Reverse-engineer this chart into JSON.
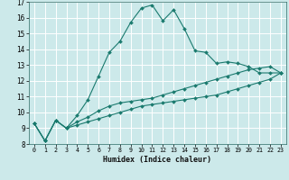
{
  "xlabel": "Humidex (Indice chaleur)",
  "background_color": "#cce9ea",
  "grid_color": "#ffffff",
  "line_color": "#1a7a6e",
  "xlim": [
    -0.5,
    23.5
  ],
  "ylim": [
    8,
    17
  ],
  "xticks": [
    0,
    1,
    2,
    3,
    4,
    5,
    6,
    7,
    8,
    9,
    10,
    11,
    12,
    13,
    14,
    15,
    16,
    17,
    18,
    19,
    20,
    21,
    22,
    23
  ],
  "yticks": [
    8,
    9,
    10,
    11,
    12,
    13,
    14,
    15,
    16,
    17
  ],
  "series1_x": [
    0,
    1,
    2,
    3,
    4,
    5,
    6,
    7,
    8,
    9,
    10,
    11,
    12,
    13,
    14,
    15,
    16,
    17,
    18,
    19,
    20,
    21,
    22,
    23
  ],
  "series1_y": [
    9.3,
    8.2,
    9.5,
    9.0,
    9.8,
    10.8,
    12.3,
    13.8,
    14.5,
    15.7,
    16.6,
    16.8,
    15.8,
    16.5,
    15.3,
    13.9,
    13.8,
    13.1,
    13.2,
    13.1,
    12.9,
    12.5,
    12.5,
    12.5
  ],
  "series2_x": [
    0,
    1,
    2,
    3,
    4,
    5,
    6,
    7,
    8,
    9,
    10,
    11,
    12,
    13,
    14,
    15,
    16,
    17,
    18,
    19,
    20,
    21,
    22,
    23
  ],
  "series2_y": [
    9.3,
    8.2,
    9.5,
    9.0,
    9.4,
    9.7,
    10.1,
    10.4,
    10.6,
    10.7,
    10.8,
    10.9,
    11.1,
    11.3,
    11.5,
    11.7,
    11.9,
    12.1,
    12.3,
    12.5,
    12.7,
    12.8,
    12.9,
    12.5
  ],
  "series3_x": [
    0,
    1,
    2,
    3,
    4,
    5,
    6,
    7,
    8,
    9,
    10,
    11,
    12,
    13,
    14,
    15,
    16,
    17,
    18,
    19,
    20,
    21,
    22,
    23
  ],
  "series3_y": [
    9.3,
    8.2,
    9.5,
    9.0,
    9.2,
    9.4,
    9.6,
    9.8,
    10.0,
    10.2,
    10.4,
    10.5,
    10.6,
    10.7,
    10.8,
    10.9,
    11.0,
    11.1,
    11.3,
    11.5,
    11.7,
    11.9,
    12.1,
    12.5
  ]
}
